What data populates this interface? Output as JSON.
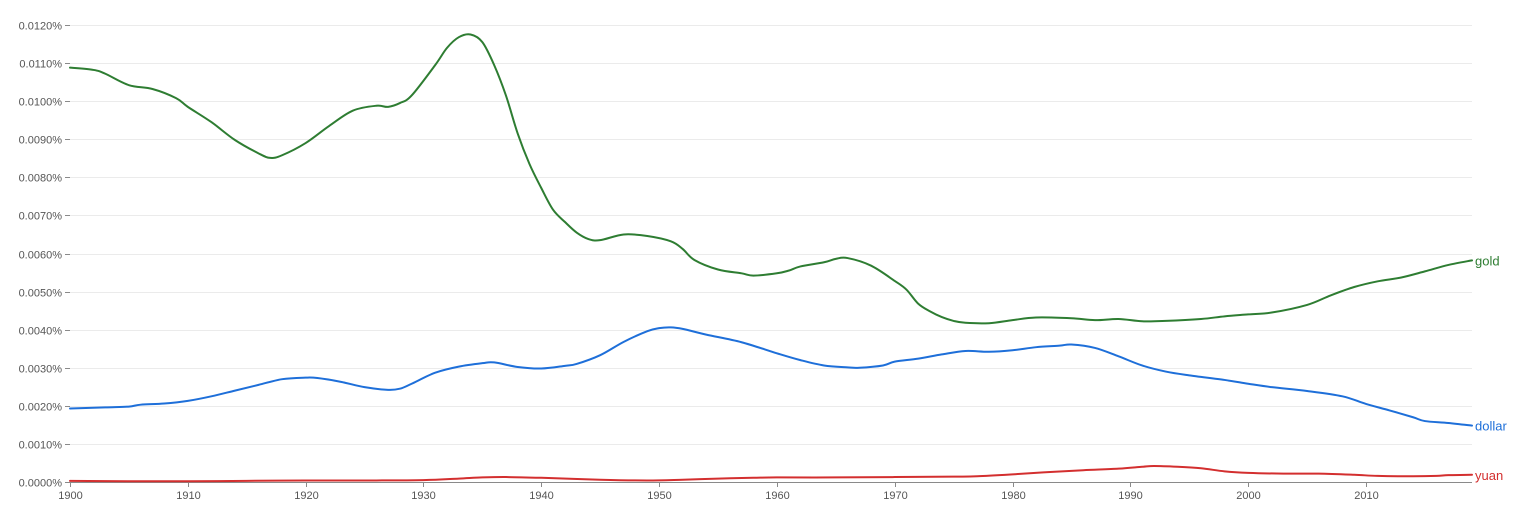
{
  "chart_data": {
    "type": "line",
    "title": "",
    "xlabel": "",
    "ylabel": "",
    "xlim": [
      1900,
      2019
    ],
    "ylim": [
      0,
      0.012
    ],
    "grid": true,
    "legend": "inline at line ends (right)",
    "x_ticks": [
      1900,
      1910,
      1920,
      1930,
      1940,
      1950,
      1960,
      1970,
      1980,
      1990,
      2000,
      2010
    ],
    "x_tick_labels": [
      "1900",
      "1910",
      "1920",
      "1930",
      "1940",
      "1950",
      "1960",
      "1970",
      "1980",
      "1990",
      "2000",
      "2010"
    ],
    "y_ticks": [
      0,
      0.001,
      0.002,
      0.003,
      0.004,
      0.005,
      0.006,
      0.007,
      0.008,
      0.009,
      0.01,
      0.011,
      0.012
    ],
    "y_tick_labels": [
      "0.0000%",
      "0.0010%",
      "0.0020%",
      "0.0030%",
      "0.0040%",
      "0.0050%",
      "0.0060%",
      "0.0070%",
      "0.0080%",
      "0.0090%",
      "0.0100%",
      "0.0110%",
      "0.0120%"
    ],
    "series": [
      {
        "name": "gold",
        "color": "#2e7d32",
        "points": [
          [
            1900,
            0.01088
          ],
          [
            1902,
            0.01082
          ],
          [
            1903,
            0.01072
          ],
          [
            1905,
            0.01042
          ],
          [
            1907,
            0.01032
          ],
          [
            1909,
            0.01008
          ],
          [
            1910,
            0.00985
          ],
          [
            1912,
            0.00945
          ],
          [
            1914,
            0.00898
          ],
          [
            1916,
            0.00863
          ],
          [
            1917,
            0.00851
          ],
          [
            1918,
            0.00858
          ],
          [
            1920,
            0.0089
          ],
          [
            1922,
            0.00935
          ],
          [
            1924,
            0.00975
          ],
          [
            1926,
            0.00988
          ],
          [
            1927,
            0.00985
          ],
          [
            1928,
            0.00995
          ],
          [
            1929,
            0.01015
          ],
          [
            1931,
            0.01095
          ],
          [
            1932,
            0.0114
          ],
          [
            1933,
            0.01168
          ],
          [
            1934,
            0.01175
          ],
          [
            1935,
            0.01155
          ],
          [
            1936,
            0.01095
          ],
          [
            1937,
            0.01015
          ],
          [
            1938,
            0.00915
          ],
          [
            1939,
            0.00835
          ],
          [
            1940,
            0.00772
          ],
          [
            1941,
            0.00715
          ],
          [
            1942,
            0.00683
          ],
          [
            1943,
            0.00655
          ],
          [
            1944,
            0.00638
          ],
          [
            1945,
            0.00635
          ],
          [
            1947,
            0.0065
          ],
          [
            1949,
            0.00646
          ],
          [
            1951,
            0.00632
          ],
          [
            1952,
            0.00612
          ],
          [
            1953,
            0.00583
          ],
          [
            1955,
            0.00558
          ],
          [
            1957,
            0.00548
          ],
          [
            1958,
            0.00542
          ],
          [
            1960,
            0.00548
          ],
          [
            1961,
            0.00555
          ],
          [
            1962,
            0.00566
          ],
          [
            1964,
            0.00577
          ],
          [
            1965,
            0.00586
          ],
          [
            1966,
            0.00588
          ],
          [
            1968,
            0.00568
          ],
          [
            1970,
            0.00528
          ],
          [
            1971,
            0.00505
          ],
          [
            1972,
            0.00468
          ],
          [
            1973,
            0.00448
          ],
          [
            1974,
            0.00433
          ],
          [
            1975,
            0.00423
          ],
          [
            1976,
            0.00418
          ],
          [
            1978,
            0.00417
          ],
          [
            1980,
            0.00425
          ],
          [
            1982,
            0.00432
          ],
          [
            1985,
            0.0043
          ],
          [
            1987,
            0.00425
          ],
          [
            1989,
            0.00428
          ],
          [
            1991,
            0.00422
          ],
          [
            1993,
            0.00423
          ],
          [
            1996,
            0.00428
          ],
          [
            1998,
            0.00435
          ],
          [
            2000,
            0.0044
          ],
          [
            2002,
            0.00445
          ],
          [
            2005,
            0.00465
          ],
          [
            2007,
            0.0049
          ],
          [
            2009,
            0.00512
          ],
          [
            2011,
            0.00527
          ],
          [
            2013,
            0.00537
          ],
          [
            2015,
            0.00553
          ],
          [
            2017,
            0.0057
          ],
          [
            2019,
            0.00582
          ]
        ]
      },
      {
        "name": "dollar",
        "color": "#1e6fd9",
        "points": [
          [
            1900,
            0.00193
          ],
          [
            1903,
            0.00196
          ],
          [
            1905,
            0.00198
          ],
          [
            1906,
            0.00203
          ],
          [
            1908,
            0.00206
          ],
          [
            1910,
            0.00213
          ],
          [
            1912,
            0.00225
          ],
          [
            1914,
            0.0024
          ],
          [
            1916,
            0.00255
          ],
          [
            1918,
            0.0027
          ],
          [
            1920,
            0.00274
          ],
          [
            1921,
            0.00273
          ],
          [
            1923,
            0.00263
          ],
          [
            1925,
            0.00249
          ],
          [
            1927,
            0.00242
          ],
          [
            1928,
            0.00245
          ],
          [
            1929,
            0.00258
          ],
          [
            1931,
            0.00287
          ],
          [
            1933,
            0.00303
          ],
          [
            1935,
            0.00312
          ],
          [
            1936,
            0.00314
          ],
          [
            1938,
            0.00302
          ],
          [
            1940,
            0.00298
          ],
          [
            1942,
            0.00305
          ],
          [
            1943,
            0.0031
          ],
          [
            1945,
            0.00333
          ],
          [
            1947,
            0.00368
          ],
          [
            1949,
            0.00396
          ],
          [
            1950,
            0.00404
          ],
          [
            1951,
            0.00406
          ],
          [
            1952,
            0.00402
          ],
          [
            1954,
            0.00387
          ],
          [
            1957,
            0.00367
          ],
          [
            1960,
            0.00338
          ],
          [
            1962,
            0.0032
          ],
          [
            1964,
            0.00306
          ],
          [
            1966,
            0.00301
          ],
          [
            1967,
            0.003
          ],
          [
            1969,
            0.00306
          ],
          [
            1970,
            0.00316
          ],
          [
            1972,
            0.00324
          ],
          [
            1974,
            0.00335
          ],
          [
            1976,
            0.00344
          ],
          [
            1978,
            0.00342
          ],
          [
            1980,
            0.00346
          ],
          [
            1982,
            0.00354
          ],
          [
            1984,
            0.00358
          ],
          [
            1985,
            0.00361
          ],
          [
            1987,
            0.00352
          ],
          [
            1989,
            0.0033
          ],
          [
            1991,
            0.00306
          ],
          [
            1993,
            0.0029
          ],
          [
            1995,
            0.0028
          ],
          [
            1998,
            0.00268
          ],
          [
            2000,
            0.00258
          ],
          [
            2002,
            0.00249
          ],
          [
            2005,
            0.00239
          ],
          [
            2008,
            0.00225
          ],
          [
            2010,
            0.00205
          ],
          [
            2012,
            0.00188
          ],
          [
            2014,
            0.0017
          ],
          [
            2015,
            0.0016
          ],
          [
            2017,
            0.00155
          ],
          [
            2019,
            0.00148
          ]
        ]
      },
      {
        "name": "yuan",
        "color": "#d32f2f",
        "points": [
          [
            1900,
            3e-05
          ],
          [
            1905,
            2e-05
          ],
          [
            1910,
            2e-05
          ],
          [
            1915,
            3e-05
          ],
          [
            1920,
            4e-05
          ],
          [
            1925,
            4e-05
          ],
          [
            1930,
            5e-05
          ],
          [
            1933,
            9e-05
          ],
          [
            1935,
            0.00012
          ],
          [
            1937,
            0.00013
          ],
          [
            1940,
            0.00011
          ],
          [
            1945,
            6e-05
          ],
          [
            1949,
            4e-05
          ],
          [
            1952,
            6e-05
          ],
          [
            1955,
            9e-05
          ],
          [
            1958,
            0.00011
          ],
          [
            1960,
            0.00012
          ],
          [
            1965,
            0.00012
          ],
          [
            1970,
            0.00013
          ],
          [
            1975,
            0.00014
          ],
          [
            1977,
            0.00015
          ],
          [
            1980,
            0.0002
          ],
          [
            1983,
            0.00026
          ],
          [
            1986,
            0.00031
          ],
          [
            1989,
            0.00035
          ],
          [
            1991,
            0.0004
          ],
          [
            1992,
            0.00042
          ],
          [
            1994,
            0.0004
          ],
          [
            1996,
            0.00036
          ],
          [
            1998,
            0.00028
          ],
          [
            2000,
            0.00024
          ],
          [
            2003,
            0.00022
          ],
          [
            2006,
            0.00022
          ],
          [
            2009,
            0.00019
          ],
          [
            2011,
            0.00016
          ],
          [
            2014,
            0.00015
          ],
          [
            2016,
            0.00016
          ],
          [
            2017,
            0.00018
          ],
          [
            2019,
            0.00019
          ]
        ]
      }
    ]
  }
}
